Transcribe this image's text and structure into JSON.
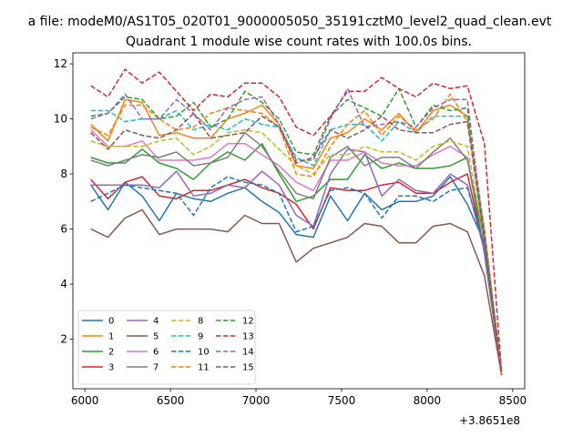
{
  "chart_data": {
    "type": "line",
    "suptitle": "a file: modeM0/AS1T05_020T01_9000005050_35191cztM0_level2_quad_clean.evt",
    "title": "Quadrant 1 module wise count rates with 100.0s bins.",
    "xlabel": "",
    "ylabel": "",
    "x_offset_label": "+3.8651e8",
    "xlim": [
      5930,
      8570
    ],
    "ylim": [
      0.2,
      12.4
    ],
    "x_ticks": [
      6000,
      6500,
      7000,
      7500,
      8000,
      8500
    ],
    "y_ticks": [
      2,
      4,
      6,
      8,
      10,
      12
    ],
    "grid": false,
    "legend": {
      "placement": "lower-left",
      "columns": 4
    },
    "x": [
      6035,
      6135,
      6235,
      6335,
      6435,
      6535,
      6635,
      6735,
      6835,
      6935,
      7035,
      7135,
      7235,
      7335,
      7435,
      7535,
      7635,
      7735,
      7835,
      7935,
      8035,
      8135,
      8235,
      8335,
      8435
    ],
    "series": [
      {
        "name": "0",
        "color": "#1f77b4",
        "dash": "solid",
        "values": [
          7.6,
          6.7,
          7.7,
          7.2,
          6.3,
          7.3,
          7.1,
          7.0,
          7.3,
          7.5,
          7.0,
          6.6,
          5.8,
          5.7,
          7.2,
          6.3,
          7.3,
          6.7,
          7.0,
          7.0,
          7.2,
          7.9,
          6.9,
          5.5,
          0.7
        ]
      },
      {
        "name": "1",
        "color": "#ff7f0e",
        "dash": "solid",
        "values": [
          9.8,
          9.2,
          10.7,
          10.6,
          9.4,
          9.5,
          9.3,
          9.3,
          10.0,
          10.2,
          10.5,
          9.8,
          8.3,
          8.2,
          9.3,
          9.5,
          10.0,
          9.6,
          10.2,
          9.5,
          10.3,
          10.5,
          10.1,
          5.8,
          0.8
        ]
      },
      {
        "name": "2",
        "color": "#2ca02c",
        "dash": "solid",
        "values": [
          8.6,
          8.4,
          8.4,
          8.9,
          8.4,
          8.2,
          7.8,
          8.4,
          8.8,
          8.5,
          9.1,
          8.0,
          7.0,
          7.2,
          7.8,
          7.8,
          8.7,
          8.2,
          8.4,
          8.2,
          8.2,
          8.3,
          8.6,
          5.1,
          0.7
        ]
      },
      {
        "name": "3",
        "color": "#d62728",
        "dash": "solid",
        "values": [
          7.8,
          7.1,
          7.7,
          7.9,
          7.2,
          7.1,
          7.4,
          7.4,
          7.6,
          7.8,
          7.5,
          7.3,
          6.9,
          6.0,
          7.5,
          7.4,
          7.4,
          7.6,
          7.7,
          7.3,
          7.3,
          7.7,
          8.0,
          5.2,
          0.7
        ]
      },
      {
        "name": "4",
        "color": "#9467bd",
        "dash": "solid",
        "values": [
          7.6,
          7.6,
          7.6,
          7.6,
          7.5,
          8.1,
          7.2,
          7.3,
          7.6,
          7.5,
          8.1,
          7.6,
          6.5,
          6.1,
          8.0,
          8.9,
          8.8,
          7.2,
          7.8,
          7.4,
          7.3,
          8.0,
          7.6,
          5.2,
          0.7
        ]
      },
      {
        "name": "5",
        "color": "#8c564b",
        "dash": "solid",
        "values": [
          6.0,
          5.7,
          6.4,
          6.7,
          5.8,
          6.0,
          6.0,
          6.0,
          5.9,
          6.5,
          6.2,
          6.2,
          4.8,
          5.3,
          5.5,
          5.7,
          6.2,
          6.1,
          5.5,
          5.5,
          6.1,
          6.2,
          5.9,
          4.3,
          0.7
        ]
      },
      {
        "name": "6",
        "color": "#e377c2",
        "dash": "solid",
        "values": [
          9.6,
          9.0,
          9.0,
          9.2,
          8.5,
          8.5,
          8.5,
          8.6,
          9.1,
          9.1,
          8.7,
          8.3,
          7.7,
          7.4,
          8.5,
          8.5,
          8.8,
          8.4,
          8.3,
          8.3,
          8.7,
          9.0,
          8.6,
          5.5,
          0.7
        ]
      },
      {
        "name": "7",
        "color": "#7f7f7f",
        "dash": "solid",
        "values": [
          8.5,
          8.3,
          8.5,
          8.7,
          8.6,
          8.8,
          8.3,
          8.4,
          8.6,
          9.5,
          9.0,
          8.1,
          7.3,
          7.1,
          8.6,
          9.0,
          8.3,
          8.6,
          8.6,
          8.2,
          8.8,
          9.3,
          8.5,
          5.6,
          0.8
        ]
      },
      {
        "name": "8",
        "color": "#bcbd22",
        "dash": "dashed",
        "values": [
          9.2,
          9.0,
          9.0,
          9.0,
          9.2,
          9.3,
          8.7,
          9.0,
          9.5,
          9.6,
          9.5,
          8.9,
          8.3,
          8.0,
          8.7,
          8.7,
          9.0,
          8.8,
          8.8,
          8.5,
          9.0,
          9.2,
          9.0,
          5.6,
          0.9
        ]
      },
      {
        "name": "9",
        "color": "#17becf",
        "dash": "dashed",
        "values": [
          10.3,
          10.3,
          9.9,
          10.0,
          10.0,
          10.3,
          9.6,
          9.8,
          9.6,
          10.0,
          9.8,
          9.7,
          8.6,
          8.3,
          9.6,
          9.8,
          9.8,
          9.2,
          9.9,
          9.5,
          10.1,
          10.1,
          10.1,
          5.6,
          0.9
        ]
      },
      {
        "name": "10",
        "color": "#1f77b4",
        "dash": "dashed",
        "values": [
          7.0,
          7.3,
          7.6,
          7.5,
          7.4,
          7.3,
          6.5,
          7.5,
          7.9,
          7.7,
          7.6,
          7.3,
          5.9,
          6.1,
          7.4,
          7.5,
          7.3,
          6.4,
          7.2,
          7.2,
          7.0,
          7.4,
          7.5,
          5.4,
          0.8
        ]
      },
      {
        "name": "11",
        "color": "#ff7f0e",
        "dash": "dashed",
        "values": [
          9.7,
          9.4,
          10.5,
          10.5,
          10.0,
          9.6,
          9.7,
          10.2,
          10.4,
          10.3,
          10.2,
          9.7,
          8.0,
          7.9,
          9.0,
          9.8,
          10.3,
          9.4,
          10.1,
          9.6,
          10.0,
          10.9,
          9.9,
          6.0,
          0.8
        ]
      },
      {
        "name": "12",
        "color": "#2ca02c",
        "dash": "dashed",
        "values": [
          10.1,
          10.2,
          10.8,
          10.7,
          10.0,
          10.1,
          10.6,
          9.7,
          10.0,
          11.0,
          10.6,
          10.0,
          8.8,
          8.7,
          10.1,
          10.7,
          10.4,
          10.1,
          11.1,
          9.7,
          10.5,
          10.3,
          10.4,
          5.9,
          0.8
        ]
      },
      {
        "name": "13",
        "color": "#d62728",
        "dash": "dashed",
        "values": [
          11.2,
          10.8,
          11.8,
          11.3,
          11.7,
          11.0,
          10.3,
          10.9,
          10.8,
          11.3,
          11.3,
          10.8,
          9.7,
          9.4,
          10.1,
          11.0,
          11.0,
          11.5,
          11.1,
          10.8,
          11.3,
          11.1,
          11.2,
          9.1,
          0.8
        ]
      },
      {
        "name": "14",
        "color": "#9467bd",
        "dash": "dashed",
        "values": [
          10.0,
          10.2,
          10.9,
          10.0,
          10.0,
          10.7,
          10.2,
          9.6,
          10.4,
          10.7,
          10.8,
          9.8,
          8.5,
          8.5,
          10.0,
          11.1,
          9.7,
          9.8,
          9.9,
          9.7,
          10.4,
          10.7,
          10.7,
          5.6,
          0.8
        ]
      },
      {
        "name": "15",
        "color": "#8c564b",
        "dash": "dashed",
        "values": [
          9.5,
          8.9,
          9.6,
          9.4,
          9.3,
          9.6,
          10.2,
          9.3,
          9.4,
          9.5,
          10.1,
          9.7,
          8.4,
          8.6,
          9.6,
          9.3,
          9.6,
          10.1,
          9.6,
          9.5,
          9.5,
          9.8,
          9.9,
          5.6,
          0.7
        ]
      }
    ]
  }
}
